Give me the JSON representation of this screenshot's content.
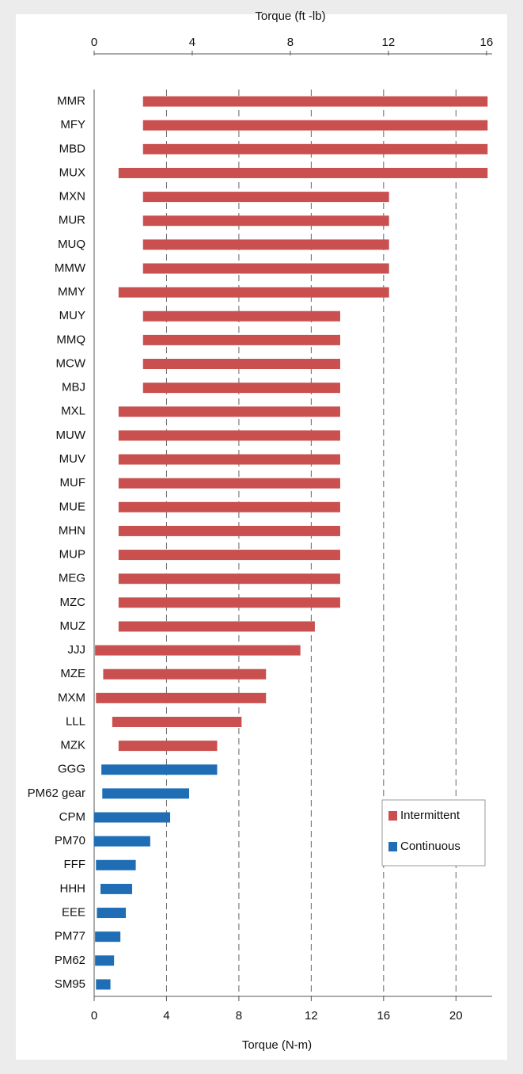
{
  "chart_data": {
    "type": "range_bar",
    "title": "Torque (ft -lb)",
    "x_label": "Torque (N-m)",
    "categories": [
      "MMR",
      "MFY",
      "MBD",
      "MUX",
      "MXN",
      "MUR",
      "MUQ",
      "MMW",
      "MMY",
      "MUY",
      "MMQ",
      "MCW",
      "MBJ",
      "MXL",
      "MUW",
      "MUV",
      "MUF",
      "MUE",
      "MHN",
      "MUP",
      "MEG",
      "MZC",
      "MUZ",
      "JJJ",
      "MZE",
      "MXM",
      "LLL",
      "MZK",
      "GGG",
      "PM62 gear",
      "CPM",
      "PM70",
      "FFF",
      "HHH",
      "EEE",
      "PM77",
      "PM62",
      "SM95"
    ],
    "series": [
      {
        "name": "Intermittent",
        "color": "#c9504f",
        "values": [
          [
            2.7,
            21.75
          ],
          [
            2.7,
            21.75
          ],
          [
            2.7,
            21.75
          ],
          [
            1.35,
            21.75
          ],
          [
            2.7,
            16.3
          ],
          [
            2.7,
            16.3
          ],
          [
            2.7,
            16.3
          ],
          [
            2.7,
            16.3
          ],
          [
            1.35,
            16.3
          ],
          [
            2.7,
            13.6
          ],
          [
            2.7,
            13.6
          ],
          [
            2.7,
            13.6
          ],
          [
            2.7,
            13.6
          ],
          [
            1.35,
            13.6
          ],
          [
            1.35,
            13.6
          ],
          [
            1.35,
            13.6
          ],
          [
            1.35,
            13.6
          ],
          [
            1.35,
            13.6
          ],
          [
            1.35,
            13.6
          ],
          [
            1.35,
            13.6
          ],
          [
            1.35,
            13.6
          ],
          [
            1.35,
            13.6
          ],
          [
            1.35,
            12.2
          ],
          [
            0.05,
            11.4
          ],
          [
            0.5,
            9.5
          ],
          [
            0.1,
            9.5
          ],
          [
            1.0,
            8.15
          ],
          [
            1.35,
            6.8
          ],
          null,
          null,
          null,
          null,
          null,
          null,
          null,
          null,
          null,
          null
        ]
      },
      {
        "name": "Continuous",
        "color": "#1f6eb5",
        "values": [
          null,
          null,
          null,
          null,
          null,
          null,
          null,
          null,
          null,
          null,
          null,
          null,
          null,
          null,
          null,
          null,
          null,
          null,
          null,
          null,
          null,
          null,
          null,
          null,
          null,
          null,
          null,
          null,
          [
            0.4,
            6.8
          ],
          [
            0.45,
            5.25
          ],
          [
            0,
            4.2
          ],
          [
            0,
            3.1
          ],
          [
            0.1,
            2.3
          ],
          [
            0.35,
            2.1
          ],
          [
            0.15,
            1.75
          ],
          [
            0.05,
            1.45
          ],
          [
            0.05,
            1.1
          ],
          [
            0.1,
            0.9
          ]
        ]
      }
    ],
    "xlim": [
      0,
      22
    ],
    "xticks": [
      0,
      4,
      8,
      12,
      16,
      20
    ],
    "x2lim": [
      0,
      16.23
    ],
    "x2ticks": [
      0,
      4,
      8,
      12,
      16
    ],
    "grid": true,
    "legend": "lower right"
  }
}
